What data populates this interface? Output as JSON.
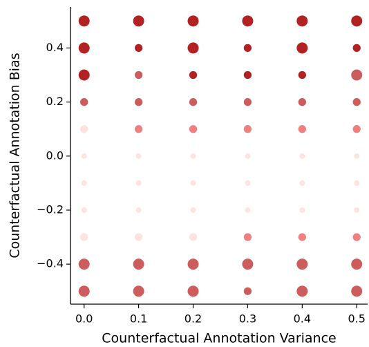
{
  "chart_data": {
    "type": "scatter",
    "xlabel": "Counterfactual Annotation Variance",
    "ylabel": "Counterfactual Annotation Bias",
    "xlim": [
      -0.025,
      0.52
    ],
    "ylim": [
      -0.548,
      0.552
    ],
    "xticks": [
      {
        "value": 0,
        "label": "0.0"
      },
      0.1,
      0.2,
      0.3,
      0.4,
      0.5
    ],
    "yticks": [
      {
        "value": -0.4,
        "label": "−0.4"
      },
      {
        "value": -0.2,
        "label": "−0.2"
      },
      {
        "value": 0,
        "label": "0.0"
      },
      0.2,
      0.4
    ],
    "x": [
      0,
      0.1,
      0.2,
      0.3,
      0.4,
      0.5,
      0,
      0.1,
      0.2,
      0.3,
      0.4,
      0.5,
      0,
      0.1,
      0.2,
      0.3,
      0.4,
      0.5,
      0,
      0.1,
      0.2,
      0.3,
      0.4,
      0.5,
      0,
      0.1,
      0.2,
      0.3,
      0.4,
      0.5,
      0,
      0.1,
      0.2,
      0.3,
      0.4,
      0.5,
      0,
      0.1,
      0.2,
      0.3,
      0.4,
      0.5,
      0,
      0.1,
      0.2,
      0.3,
      0.4,
      0.5,
      0,
      0.1,
      0.2,
      0.3,
      0.4,
      0.5,
      0,
      0.1,
      0.2,
      0.3,
      0.4,
      0.5,
      0,
      0.1,
      0.2,
      0.3,
      0.4,
      0.5
    ],
    "y": [
      0.5,
      0.5,
      0.5,
      0.5,
      0.5,
      0.5,
      0.4,
      0.4,
      0.4,
      0.4,
      0.4,
      0.4,
      0.3,
      0.3,
      0.3,
      0.3,
      0.3,
      0.3,
      0.2,
      0.2,
      0.2,
      0.2,
      0.2,
      0.2,
      0.1,
      0.1,
      0.1,
      0.1,
      0.1,
      0.1,
      0,
      0,
      0,
      0,
      0,
      0,
      -0.1,
      -0.1,
      -0.1,
      -0.1,
      -0.1,
      -0.1,
      -0.2,
      -0.2,
      -0.2,
      -0.2,
      -0.2,
      -0.2,
      -0.3,
      -0.3,
      -0.3,
      -0.3,
      -0.3,
      -0.3,
      -0.4,
      -0.4,
      -0.4,
      -0.4,
      -0.4,
      -0.4,
      -0.5,
      -0.5,
      -0.5,
      -0.5,
      -0.5,
      -0.5
    ],
    "sizes": [
      100,
      100,
      100,
      100,
      100,
      100,
      100,
      50,
      100,
      50,
      100,
      50,
      100,
      50,
      50,
      50,
      50,
      100,
      50,
      50,
      50,
      50,
      50,
      50,
      50,
      50,
      50,
      50,
      50,
      50,
      25,
      25,
      25,
      25,
      25,
      25,
      25,
      25,
      25,
      25,
      25,
      25,
      25,
      25,
      25,
      25,
      25,
      25,
      50,
      50,
      50,
      50,
      50,
      50,
      100,
      100,
      100,
      100,
      100,
      100,
      100,
      100,
      100,
      50,
      100,
      100
    ],
    "colors": [
      "#b22222",
      "#b22222",
      "#b22222",
      "#b22222",
      "#b22222",
      "#b22222",
      "#b22222",
      "#b22222",
      "#b22222",
      "#b22222",
      "#b22222",
      "#b22222",
      "#b22222",
      "#cd5c5c",
      "#b22222",
      "#b22222",
      "#b22222",
      "#cd5c5c",
      "#cd5c5c",
      "#cd5c5c",
      "#cd5c5c",
      "#cd5c5c",
      "#cd5c5c",
      "#cd5c5c",
      "#fde4e0",
      "#f08080",
      "#f08080",
      "#f08080",
      "#f08080",
      "#f08080",
      "#fde4e0",
      "#fde4e0",
      "#fde4e0",
      "#fde4e0",
      "#fde4e0",
      "#fde4e0",
      "#fde4e0",
      "#fde4e0",
      "#fde4e0",
      "#fde4e0",
      "#fde4e0",
      "#fde4e0",
      "#fde4e0",
      "#fde4e0",
      "#fde4e0",
      "#fde4e0",
      "#fde4e0",
      "#fde4e0",
      "#fde4e0",
      "#fde4e0",
      "#fde4e0",
      "#f08080",
      "#f08080",
      "#f08080",
      "#cd5c5c",
      "#cd5c5c",
      "#cd5c5c",
      "#cd5c5c",
      "#cd5c5c",
      "#cd5c5c",
      "#cd5c5c",
      "#cd5c5c",
      "#cd5c5c",
      "#cd5c5c",
      "#cd5c5c",
      "#cd5c5c"
    ]
  }
}
